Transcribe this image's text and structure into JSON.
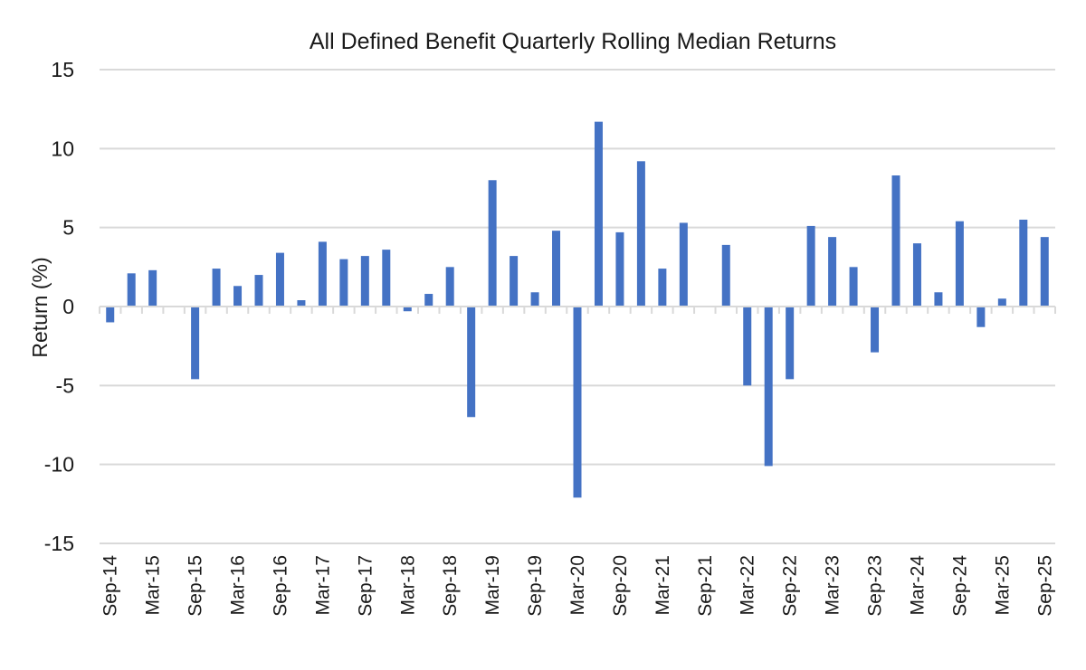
{
  "chart_data": {
    "type": "bar",
    "title": "All Defined Benefit Quarterly Rolling Median Returns",
    "xlabel": "",
    "ylabel": "Return (%)",
    "ylim": [
      -15,
      15
    ],
    "yticks": [
      15,
      10,
      5,
      0,
      -5,
      -10,
      -15
    ],
    "grid": true,
    "legend": null,
    "bar_color": "#4472C4",
    "grid_color": "#D9D9D9",
    "categories": [
      "Sep-14",
      "Dec-14",
      "Mar-15",
      "Jun-15",
      "Sep-15",
      "Dec-15",
      "Mar-16",
      "Jun-16",
      "Sep-16",
      "Dec-16",
      "Mar-17",
      "Jun-17",
      "Sep-17",
      "Dec-17",
      "Mar-18",
      "Jun-18",
      "Sep-18",
      "Dec-18",
      "Mar-19",
      "Jun-19",
      "Sep-19",
      "Dec-19",
      "Mar-20",
      "Jun-20",
      "Sep-20",
      "Dec-20",
      "Mar-21",
      "Jun-21",
      "Sep-21",
      "Dec-21",
      "Mar-22",
      "Jun-22",
      "Sep-22",
      "Dec-22",
      "Mar-23",
      "Jun-23",
      "Sep-23",
      "Dec-23",
      "Mar-24",
      "Jun-24",
      "Sep-24",
      "Dec-24",
      "Mar-25",
      "Jun-25",
      "Sep-25"
    ],
    "tick_labels": [
      "Sep-14",
      "Mar-15",
      "Sep-15",
      "Mar-16",
      "Sep-16",
      "Mar-17",
      "Sep-17",
      "Mar-18",
      "Sep-18",
      "Mar-19",
      "Sep-19",
      "Mar-20",
      "Sep-20",
      "Mar-21",
      "Sep-21",
      "Mar-22",
      "Sep-22",
      "Mar-23",
      "Sep-23",
      "Mar-24",
      "Sep-24",
      "Mar-25",
      "Sep-25"
    ],
    "series": [
      {
        "name": "Quarterly Rolling Median Return",
        "values": [
          -1.0,
          2.1,
          2.3,
          0.0,
          -4.6,
          2.4,
          1.3,
          2.0,
          3.4,
          0.4,
          4.1,
          3.0,
          3.2,
          3.6,
          -0.3,
          0.8,
          2.5,
          -7.0,
          8.0,
          3.2,
          0.9,
          4.8,
          -12.1,
          11.7,
          4.7,
          9.2,
          2.4,
          5.3,
          0.0,
          3.9,
          -5.0,
          -10.1,
          -4.6,
          5.1,
          4.4,
          2.5,
          -2.9,
          8.3,
          4.0,
          0.9,
          5.4,
          -1.3,
          0.5,
          5.5,
          4.4
        ]
      }
    ]
  }
}
